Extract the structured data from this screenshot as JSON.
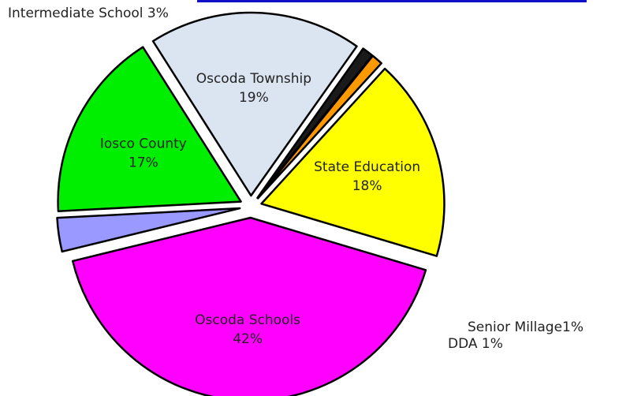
{
  "chart_data": {
    "type": "pie",
    "slices": [
      {
        "label": "Iosco County",
        "percent_text": "17%",
        "value": 17,
        "color": "#00ee00",
        "label_placement": "inside"
      },
      {
        "label": "Oscoda Township",
        "percent_text": "19%",
        "value": 19,
        "color": "#dbe5f1",
        "label_placement": "inside"
      },
      {
        "label": "Senior Millage",
        "percent_text": "1%",
        "value": 1,
        "color": "#1a1a1a",
        "label_placement": "outside"
      },
      {
        "label": "DDA",
        "percent_text": "1%",
        "value": 1,
        "color": "#ff9900",
        "label_placement": "outside"
      },
      {
        "label": "State Education",
        "percent_text": "18%",
        "value": 18,
        "color": "#ffff00",
        "label_placement": "inside"
      },
      {
        "label": "Oscoda Schools",
        "percent_text": "42%",
        "value": 42,
        "color": "#ff00ff",
        "label_placement": "inside"
      },
      {
        "label": "Intermediate School",
        "percent_text": "3%",
        "value": 3,
        "color": "#9999ff",
        "label_placement": "outside"
      }
    ],
    "external_labels": {
      "intermediate": "Intermediate School 3%",
      "senior": "Senior Millage1%",
      "dda": "DDA  1%"
    },
    "legend": "none"
  }
}
